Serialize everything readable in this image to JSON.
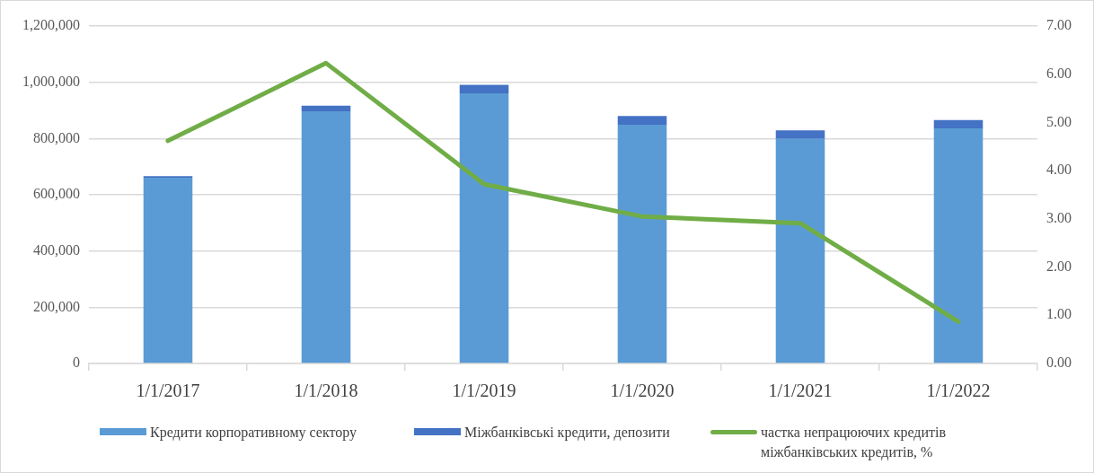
{
  "chart_data": {
    "type": "bar",
    "stacked": true,
    "categories": [
      "1/1/2017",
      "1/1/2018",
      "1/1/2019",
      "1/1/2020",
      "1/1/2021",
      "1/1/2022"
    ],
    "series": [
      {
        "name": "Кредити корпоративному сектору",
        "color": "#5b9bd5",
        "values": [
          661000,
          897000,
          961000,
          849000,
          799000,
          836000
        ]
      },
      {
        "name": "Міжбанківські кредити, депозити",
        "color": "#4472c4",
        "values": [
          5000,
          20000,
          30000,
          31000,
          30000,
          30000
        ]
      },
      {
        "name": "частка непрацюючих кредитів міжбанківських кредитів, %",
        "type": "line",
        "axis": "y2",
        "color": "#70ad47",
        "values": [
          4.62,
          6.23,
          3.72,
          3.05,
          2.91,
          0.87
        ]
      }
    ],
    "ylim": [
      0,
      1200000
    ],
    "yticks": [
      {
        "value": 0,
        "label": "0"
      },
      {
        "value": 200000,
        "label": "200,000"
      },
      {
        "value": 400000,
        "label": "400,000"
      },
      {
        "value": 600000,
        "label": "600,000"
      },
      {
        "value": 800000,
        "label": "800,000"
      },
      {
        "value": 1000000,
        "label": "1,000,000"
      },
      {
        "value": 1200000,
        "label": "1,200,000"
      }
    ],
    "y2lim": [
      0,
      7
    ],
    "y2ticks": [
      {
        "value": 0,
        "label": "0.00"
      },
      {
        "value": 1,
        "label": "1.00"
      },
      {
        "value": 2,
        "label": "2.00"
      },
      {
        "value": 3,
        "label": "3.00"
      },
      {
        "value": 4,
        "label": "4.00"
      },
      {
        "value": 5,
        "label": "5.00"
      },
      {
        "value": 6,
        "label": "6.00"
      },
      {
        "value": 7,
        "label": "7.00"
      }
    ],
    "grid": "y",
    "legend": "bottom",
    "marker": "none"
  }
}
